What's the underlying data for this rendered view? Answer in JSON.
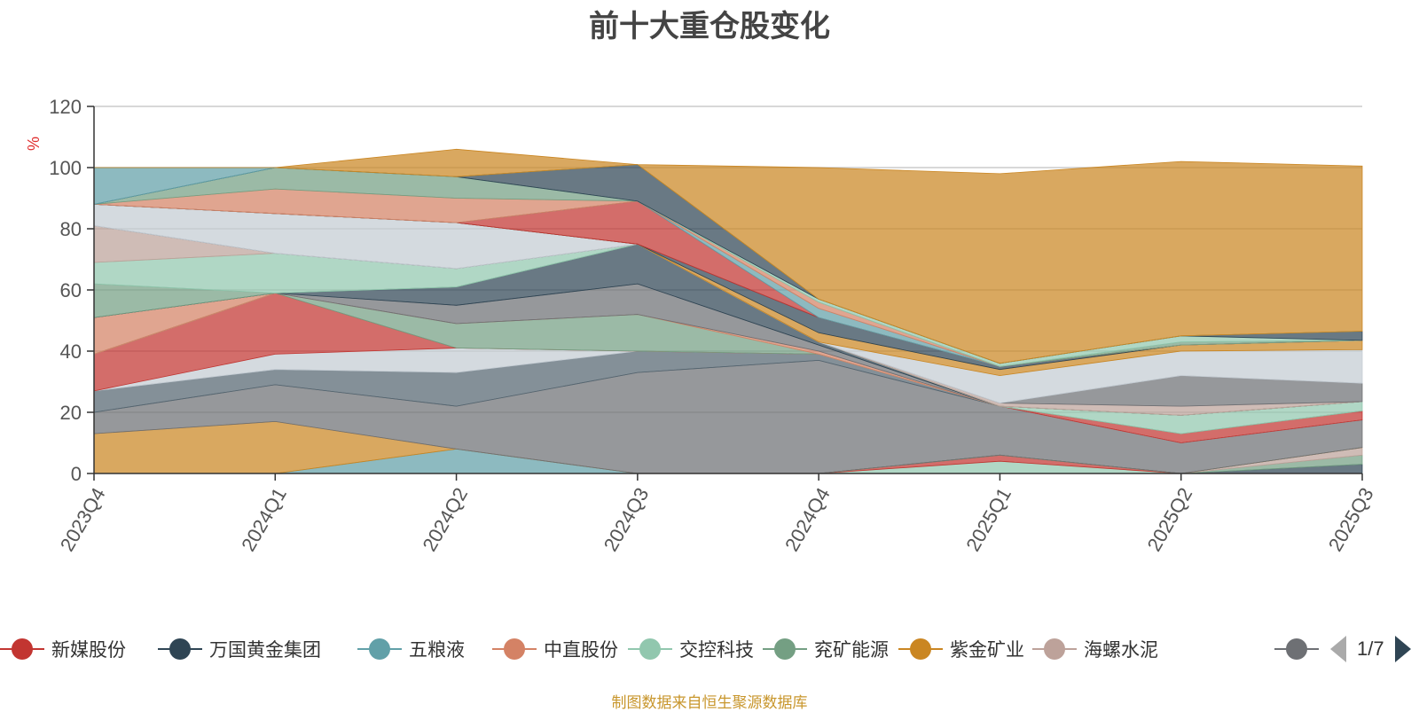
{
  "title": "前十大重仓股变化",
  "y_unit": "%",
  "source": "制图数据来自恒生聚源数据库",
  "pager": {
    "text": "1/7"
  },
  "legend": [
    {
      "name": "新媒股份",
      "color": "#c23531"
    },
    {
      "name": "万国黄金集团",
      "color": "#2f4554"
    },
    {
      "name": "五粮液",
      "color": "#61a0a8"
    },
    {
      "name": "中直股份",
      "color": "#d48265"
    },
    {
      "name": "交控科技",
      "color": "#91c7ae"
    },
    {
      "name": "兖矿能源",
      "color": "#749f83"
    },
    {
      "name": "紫金矿业",
      "color": "#ca8622"
    },
    {
      "name": "海螺水泥",
      "color": "#bda29a"
    },
    {
      "name": "",
      "color": "#6e7074"
    }
  ],
  "chart_data": {
    "type": "area",
    "title": "前十大重仓股变化",
    "ylabel": "%",
    "ylim": [
      0,
      120
    ],
    "y_ticks": [
      0,
      20,
      40,
      60,
      80,
      100,
      120
    ],
    "grid": true,
    "stacked": true,
    "x": [
      "2023Q4",
      "2024Q1",
      "2024Q2",
      "2024Q3",
      "2024Q4",
      "2025Q1",
      "2025Q2",
      "2025Q3"
    ],
    "series": [
      {
        "color": "#91c7ae",
        "values": [
          0,
          0,
          0,
          0,
          0,
          4,
          0,
          0
        ]
      },
      {
        "color": "#c23531",
        "values": [
          0,
          0,
          0,
          0,
          0,
          2,
          0,
          0
        ]
      },
      {
        "color": "#2f4554",
        "values": [
          0,
          0,
          0,
          0,
          0,
          0,
          0,
          3
        ]
      },
      {
        "color": "#749f83",
        "values": [
          0,
          0,
          0,
          0,
          0,
          0,
          0,
          3
        ]
      },
      {
        "color": "#bda29a",
        "values": [
          0,
          0,
          0,
          0,
          0,
          0,
          0,
          2.5
        ]
      },
      {
        "color": "#61a0a8",
        "values": [
          0,
          0,
          8,
          0,
          0,
          0,
          0,
          0
        ]
      },
      {
        "color": "#ca8622",
        "values": [
          13,
          17,
          0,
          0,
          0,
          0,
          0,
          0
        ]
      },
      {
        "color": "#6e7074",
        "values": [
          7,
          12,
          14,
          33,
          37,
          16,
          10,
          9
        ]
      },
      {
        "color": "#546570",
        "values": [
          7,
          5,
          11,
          7,
          2,
          0,
          0,
          0
        ]
      },
      {
        "color": "#c4ccd3",
        "values": [
          0,
          5,
          8,
          0,
          0,
          0,
          0,
          0
        ]
      },
      {
        "color": "#c23531",
        "values": [
          12,
          20,
          0,
          0,
          0,
          0,
          3,
          3
        ]
      },
      {
        "color": "#749f83",
        "values": [
          0,
          0,
          8,
          12,
          0,
          0,
          0,
          0
        ]
      },
      {
        "color": "#91c7ae",
        "values": [
          0,
          0,
          0,
          0,
          0,
          0,
          6,
          3
        ]
      },
      {
        "color": "#d48265",
        "values": [
          12,
          0,
          0,
          0,
          1,
          0,
          0,
          0
        ]
      },
      {
        "color": "#6e7074",
        "values": [
          0,
          0,
          6,
          10,
          2,
          0,
          0,
          0
        ]
      },
      {
        "color": "#2f4554",
        "values": [
          0,
          0,
          6,
          13,
          1,
          0,
          0,
          0
        ]
      },
      {
        "color": "#749f83",
        "values": [
          11,
          0,
          0,
          0,
          0,
          0,
          0,
          0
        ]
      },
      {
        "color": "#91c7ae",
        "values": [
          7,
          13,
          6,
          0,
          0,
          0,
          0,
          0
        ]
      },
      {
        "color": "#bda29a",
        "values": [
          12,
          0,
          0,
          0,
          0,
          1,
          3,
          0
        ]
      },
      {
        "color": "#6e7074",
        "values": [
          0,
          0,
          0,
          0,
          0,
          0,
          10,
          6
        ]
      },
      {
        "color": "#c4ccd3",
        "values": [
          7,
          13,
          15,
          0,
          0,
          9,
          8,
          11
        ]
      },
      {
        "color": "#ca8622",
        "values": [
          0,
          0,
          0,
          0,
          3,
          2,
          2,
          3
        ]
      },
      {
        "color": "#2f4554",
        "values": [
          0,
          0,
          0,
          0,
          5,
          1,
          0,
          0
        ]
      },
      {
        "color": "#c23531",
        "values": [
          0,
          0,
          0,
          14,
          0,
          0,
          0,
          0
        ]
      },
      {
        "color": "#61a0a8",
        "values": [
          0,
          0,
          0,
          0,
          3,
          0,
          0,
          0
        ]
      },
      {
        "color": "#d48265",
        "values": [
          0,
          8,
          8,
          0,
          2,
          0,
          0,
          0
        ]
      },
      {
        "color": "#749f83",
        "values": [
          0,
          7,
          7,
          0,
          0,
          0,
          1,
          0
        ]
      },
      {
        "color": "#91c7ae",
        "values": [
          0,
          0,
          0,
          0,
          1,
          1,
          2,
          0
        ]
      },
      {
        "color": "#2f4554",
        "values": [
          0,
          0,
          0,
          12,
          0,
          0,
          0,
          3
        ]
      },
      {
        "color": "#61a0a8",
        "values": [
          12,
          0,
          0,
          0,
          0,
          0,
          0,
          0
        ]
      },
      {
        "color": "#ca8622",
        "values": [
          0,
          0,
          9,
          0,
          43,
          62,
          57,
          54
        ]
      }
    ]
  }
}
